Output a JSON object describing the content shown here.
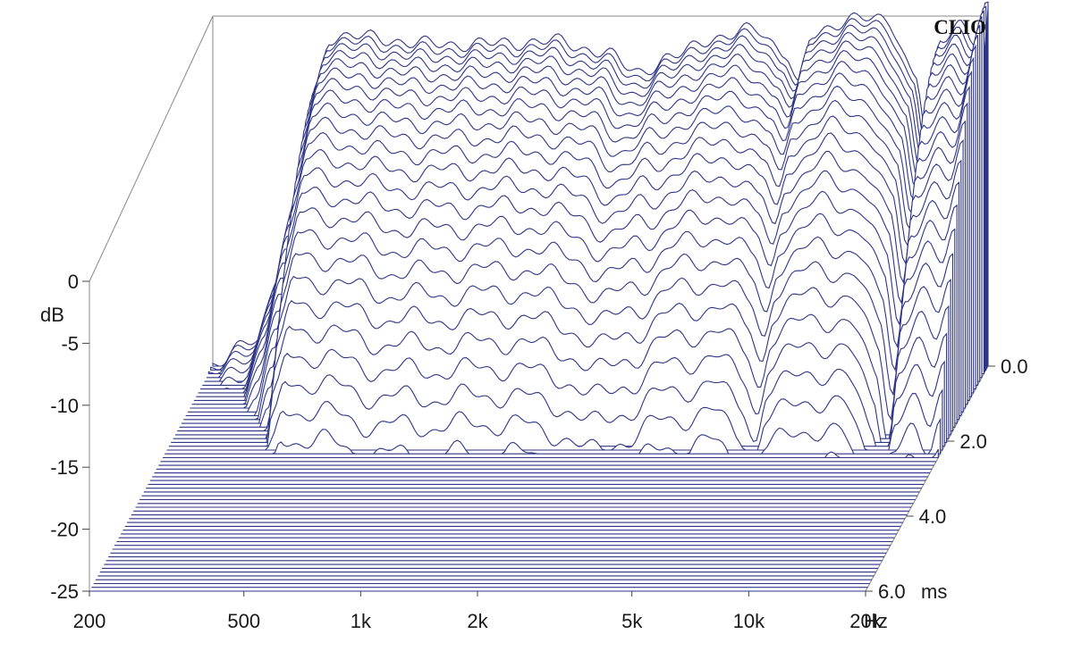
{
  "chart_data": {
    "type": "waterfall",
    "title": "",
    "brand": "CLIO",
    "y_axis": {
      "unit": "dB",
      "ticks": [
        0,
        -5,
        -10,
        -15,
        -20,
        -25
      ],
      "range": [
        -25,
        0
      ]
    },
    "x_axis": {
      "unit": "Hz",
      "scale": "log",
      "range": [
        200,
        20000
      ],
      "ticks": [
        {
          "value": 200,
          "label": "200"
        },
        {
          "value": 500,
          "label": "500"
        },
        {
          "value": 1000,
          "label": "1k"
        },
        {
          "value": 2000,
          "label": "2k"
        },
        {
          "value": 5000,
          "label": "5k"
        },
        {
          "value": 10000,
          "label": "10k"
        },
        {
          "value": 20000,
          "label": "20k"
        }
      ]
    },
    "z_axis": {
      "unit": "ms",
      "range": [
        0,
        6
      ],
      "ticks": [
        {
          "value": 0,
          "label": "0.0"
        },
        {
          "value": 2,
          "label": "2.0"
        },
        {
          "value": 4,
          "label": "4.0"
        },
        {
          "value": 6,
          "label": "6.0"
        }
      ]
    },
    "slice_count": 60,
    "line_color": "#2e3586",
    "initial_response": [
      {
        "f": 200,
        "db": -25
      },
      {
        "f": 260,
        "db": -23
      },
      {
        "f": 300,
        "db": -18
      },
      {
        "f": 340,
        "db": -12
      },
      {
        "f": 370,
        "db": -5
      },
      {
        "f": 400,
        "db": -1.5
      },
      {
        "f": 500,
        "db": -1.5
      },
      {
        "f": 700,
        "db": -2
      },
      {
        "f": 1000,
        "db": -2
      },
      {
        "f": 1500,
        "db": -1.8
      },
      {
        "f": 2000,
        "db": -2.5
      },
      {
        "f": 2500,
        "db": -4
      },
      {
        "f": 3000,
        "db": -3
      },
      {
        "f": 4000,
        "db": -1.5
      },
      {
        "f": 5000,
        "db": -1
      },
      {
        "f": 6000,
        "db": -2.5
      },
      {
        "f": 6500,
        "db": -5
      },
      {
        "f": 7000,
        "db": -1.5
      },
      {
        "f": 9000,
        "db": 0
      },
      {
        "f": 11000,
        "db": -0.5
      },
      {
        "f": 13000,
        "db": -4
      },
      {
        "f": 14000,
        "db": -9
      },
      {
        "f": 15000,
        "db": -2
      },
      {
        "f": 17000,
        "db": -0.5
      },
      {
        "f": 18500,
        "db": -1.5
      },
      {
        "f": 20000,
        "db": 1
      }
    ]
  }
}
